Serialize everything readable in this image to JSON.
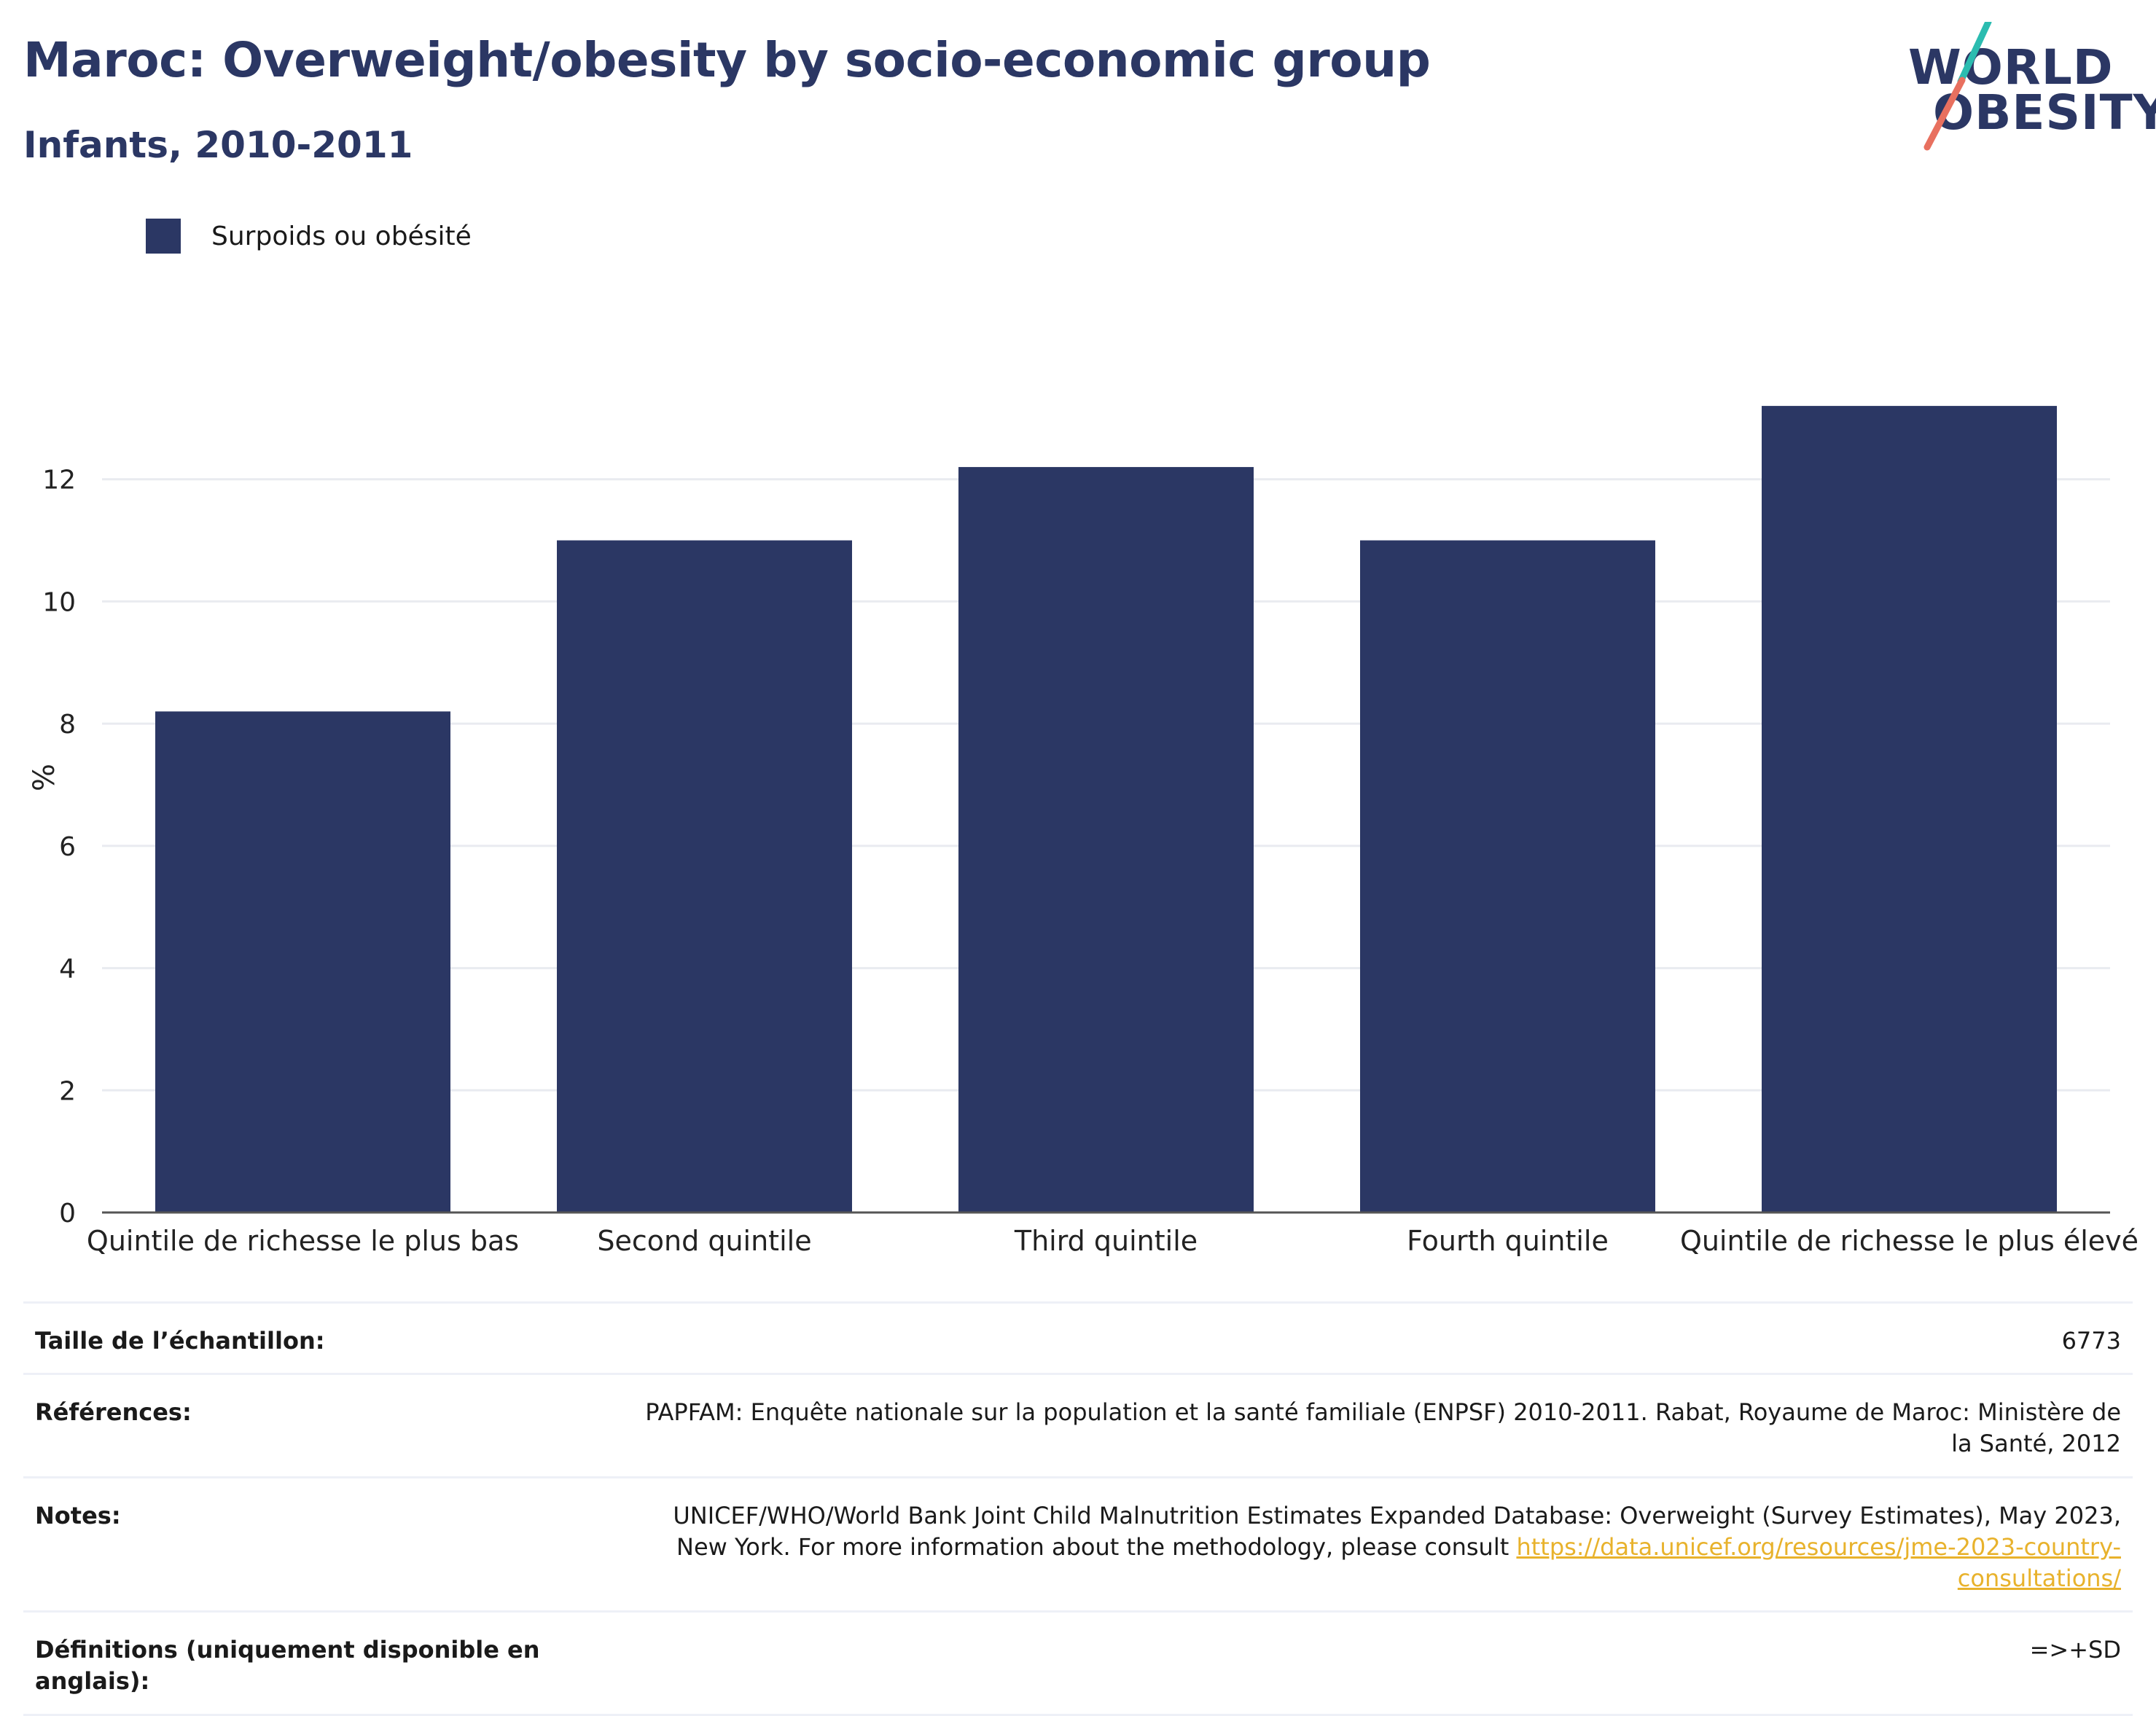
{
  "header": {
    "title": "Maroc: Overweight/obesity by socio-economic group",
    "subtitle": "Infants, 2010-2011"
  },
  "logo": {
    "line1": "WORLD",
    "line2": "OBESITY",
    "colors": {
      "text": "#2b3764",
      "slash_top": "#2bbcb0",
      "slash_bottom": "#e8705f"
    }
  },
  "colors": {
    "bar": "#2b3764",
    "grid": "#e9ebf0",
    "axis": "#555555",
    "link": "#e8b22c"
  },
  "chart_data": {
    "type": "bar",
    "categories": [
      "Quintile de richesse le plus bas",
      "Second quintile",
      "Third quintile",
      "Fourth quintile",
      "Quintile de richesse le plus élevé"
    ],
    "series": [
      {
        "name": "Surpoids ou obésité",
        "values": [
          8.2,
          11.0,
          12.2,
          11.0,
          13.2
        ]
      }
    ],
    "ylabel": "%",
    "ylim": [
      0,
      14
    ],
    "yticks": [
      0,
      2,
      4,
      6,
      8,
      10,
      12
    ],
    "grid": true,
    "legend": "top-left"
  },
  "table": [
    {
      "key": "Taille de l’échantillon:",
      "value": "6773"
    },
    {
      "key": "Références:",
      "value": "PAPFAM: Enquête nationale sur la population et la santé familiale (ENPSF) 2010-2011. Rabat, Royaume de Maroc: Ministère de la Santé, 2012"
    },
    {
      "key": "Notes:",
      "value": "UNICEF/WHO/World Bank Joint Child Malnutrition Estimates Expanded Database: Overweight (Survey Estimates), May 2023, New York. For more information about the methodology, please consult ",
      "link": "https://data.unicef.org/resources/jme-2023-country-consultations/"
    },
    {
      "key": "Définitions (uniquement disponible en anglais):",
      "value": "=>+SD"
    }
  ]
}
